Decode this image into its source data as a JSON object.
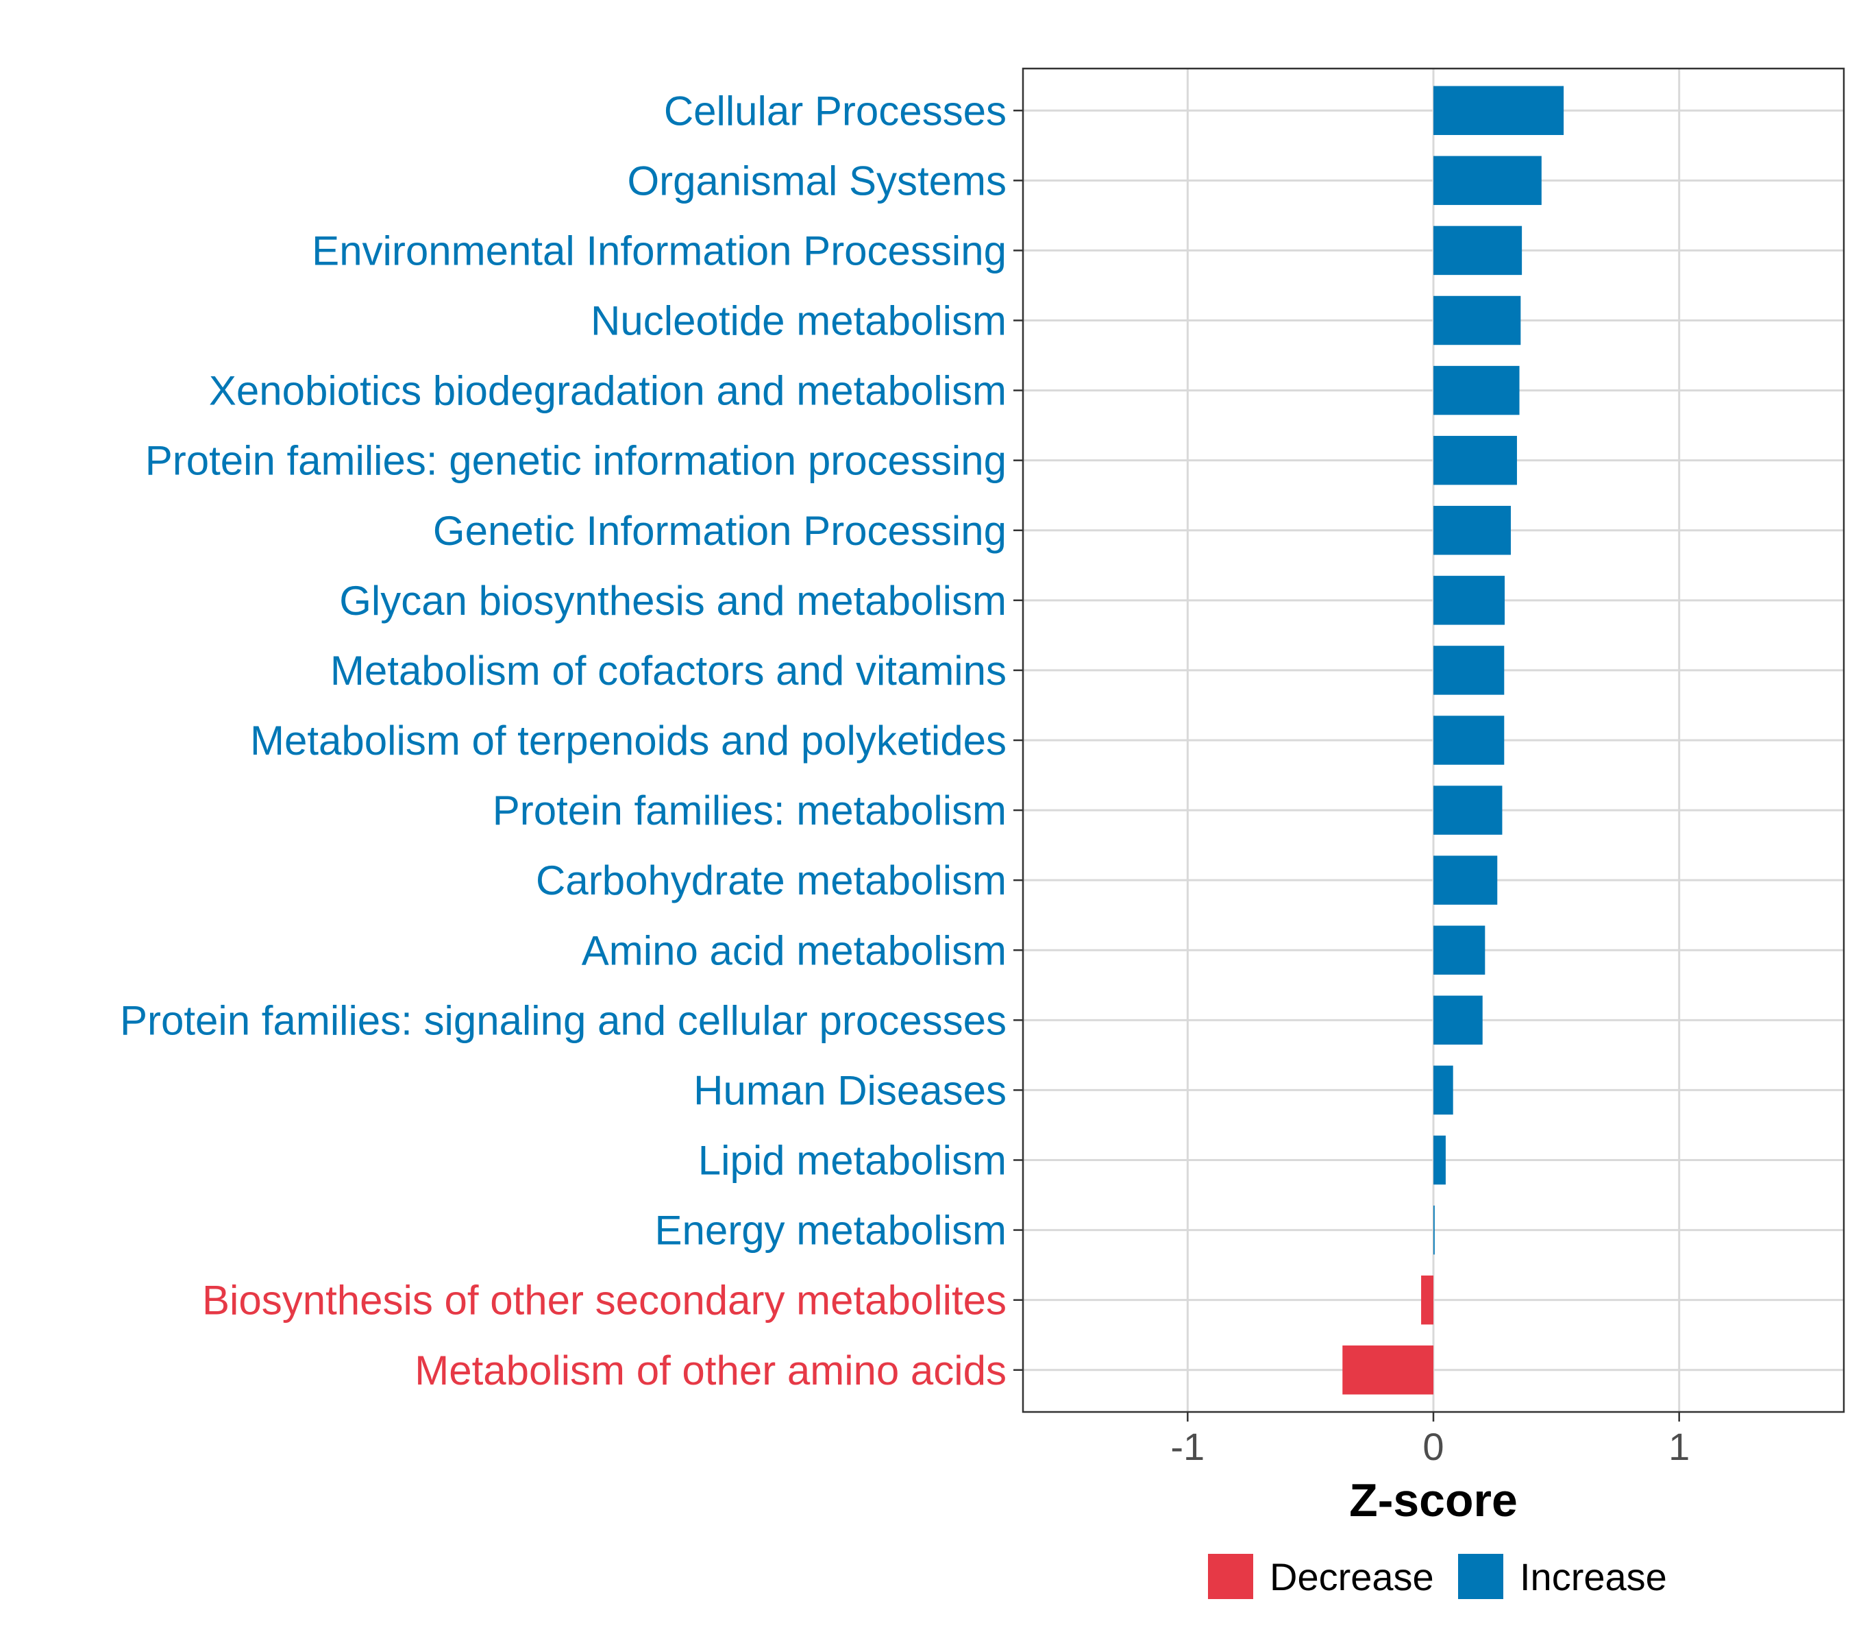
{
  "chart_data": {
    "type": "bar",
    "orientation": "horizontal",
    "title": "",
    "xlabel": "Z-score",
    "ylabel": "",
    "xlim": [
      -1.67,
      1.67
    ],
    "xticks": [
      -1,
      0,
      1
    ],
    "xtick_labels": [
      "-1",
      "0",
      "1"
    ],
    "grid": true,
    "legend_position": "bottom",
    "categories": [
      "Cellular Processes",
      "Organismal Systems",
      "Environmental Information Processing",
      "Nucleotide metabolism",
      "Xenobiotics biodegradation and metabolism",
      "Protein families: genetic information processing",
      "Genetic Information Processing",
      "Glycan biosynthesis and metabolism",
      "Metabolism of cofactors and vitamins",
      "Metabolism of terpenoids and polyketides",
      "Protein families: metabolism",
      "Carbohydrate metabolism",
      "Amino acid metabolism",
      "Protein families: signaling and cellular processes",
      "Human Diseases",
      "Lipid metabolism",
      "Energy metabolism",
      "Biosynthesis of other secondary metabolites",
      "Metabolism of other amino acids"
    ],
    "values": [
      0.53,
      0.44,
      0.36,
      0.355,
      0.35,
      0.34,
      0.315,
      0.29,
      0.288,
      0.288,
      0.28,
      0.26,
      0.21,
      0.2,
      0.08,
      0.05,
      0.005,
      -0.05,
      -0.37
    ],
    "groups": [
      "Increase",
      "Increase",
      "Increase",
      "Increase",
      "Increase",
      "Increase",
      "Increase",
      "Increase",
      "Increase",
      "Increase",
      "Increase",
      "Increase",
      "Increase",
      "Increase",
      "Increase",
      "Increase",
      "Increase",
      "Decrease",
      "Decrease"
    ],
    "legend": [
      {
        "name": "Decrease",
        "color": "#E63946"
      },
      {
        "name": "Increase",
        "color": "#0077B6"
      }
    ]
  },
  "colors": {
    "increase": "#0077B6",
    "decrease": "#E63946",
    "grid": "#d9d9d9",
    "panel_border": "#333333"
  }
}
